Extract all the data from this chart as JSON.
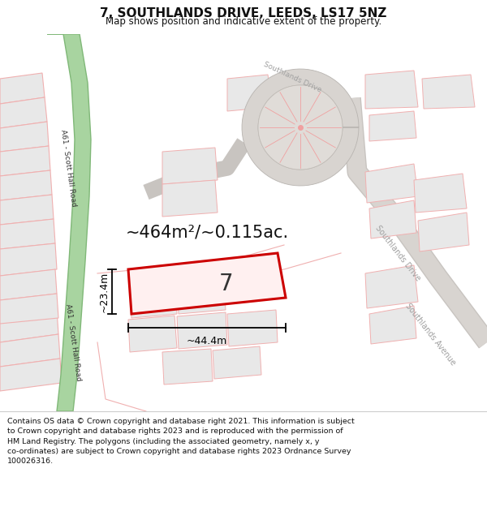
{
  "title": "7, SOUTHLANDS DRIVE, LEEDS, LS17 5NZ",
  "subtitle": "Map shows position and indicative extent of the property.",
  "area_text": "~464m²/~0.115ac.",
  "plot_number": "7",
  "dim_width": "~44.4m",
  "dim_height": "~23.4m",
  "road_label_a61_top": "A61 - Scott Hall Road",
  "road_label_a61_bot": "A61 - Scott Hall Road",
  "road_label_sd": "Southlands Drive",
  "road_label_sa": "Southlands Avenue",
  "copyright_text": "Contains OS data © Crown copyright and database right 2021. This information is subject\nto Crown copyright and database rights 2023 and is reproduced with the permission of\nHM Land Registry. The polygons (including the associated geometry, namely x, y\nco-ordinates) are subject to Crown copyright and database rights 2023 Ordnance Survey\n100026316.",
  "bg_color": "#ffffff",
  "map_bg": "#ffffff",
  "green_road": "#90c090",
  "green_road_edge": "#60a060",
  "property_outline": "#cc0000",
  "parcel_fill": "#e8e8e8",
  "parcel_outline": "#f0b0b0",
  "road_gray": "#c8c0b8",
  "road_outline": "#b8b0a8",
  "cul_de_sac_fill": "#e0dcd8",
  "cul_de_sac_inner": "#d0ccc8",
  "spoke_color": "#f0a0a0",
  "text_road": "#888880",
  "text_dark": "#111111",
  "dim_arrow_color": "#000000"
}
